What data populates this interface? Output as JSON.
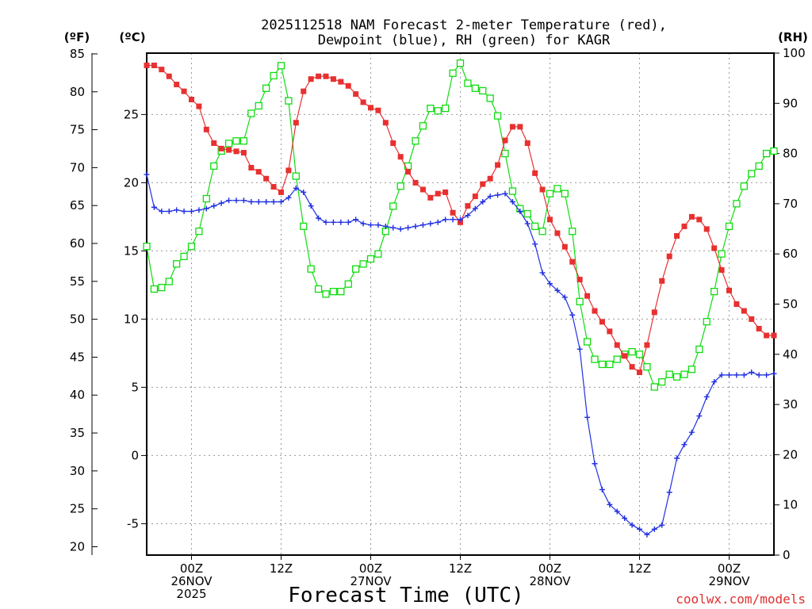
{
  "chart_data": {
    "type": "line",
    "title_lines": [
      "2025112518 NAM Forecast 2-meter Temperature (red),",
      "Dewpoint (blue), RH (green) for KAGR"
    ],
    "xlabel": "Forecast Time (UTC)",
    "credit": "coolwx.com/models",
    "unit_labels": {
      "fahrenheit": "(ºF)",
      "celsius": "(ºC)",
      "rh": "(RH)"
    },
    "x_hours_range": [
      0,
      84
    ],
    "x_ticks": [
      {
        "hour": 6,
        "lines": [
          "00Z",
          "26NOV",
          "2025"
        ]
      },
      {
        "hour": 18,
        "lines": [
          "12Z"
        ]
      },
      {
        "hour": 30,
        "lines": [
          "00Z",
          "27NOV"
        ]
      },
      {
        "hour": 42,
        "lines": [
          "12Z"
        ]
      },
      {
        "hour": 54,
        "lines": [
          "00Z",
          "28NOV"
        ]
      },
      {
        "hour": 66,
        "lines": [
          "12Z"
        ]
      },
      {
        "hour": 78,
        "lines": [
          "00Z",
          "29NOV"
        ]
      }
    ],
    "celsius_axis": {
      "range": [
        -7.3,
        29.5
      ],
      "ticks": [
        -5,
        0,
        5,
        10,
        15,
        20,
        25
      ]
    },
    "fahrenheit_axis": {
      "range": [
        18.9,
        85.1
      ],
      "ticks": [
        20,
        25,
        30,
        35,
        40,
        45,
        50,
        55,
        60,
        65,
        70,
        75,
        80,
        85
      ]
    },
    "rh_axis": {
      "range": [
        0,
        100
      ],
      "ticks": [
        0,
        10,
        20,
        30,
        40,
        50,
        60,
        70,
        80,
        90,
        100
      ]
    },
    "series": [
      {
        "name": "2-meter Temperature",
        "unit": "C",
        "color": "#e83030",
        "marker": "filled-square",
        "points": [
          [
            0,
            28.6
          ],
          [
            1,
            28.6
          ],
          [
            2,
            28.3
          ],
          [
            3,
            27.8
          ],
          [
            4,
            27.2
          ],
          [
            5,
            26.7
          ],
          [
            6,
            26.1
          ],
          [
            7,
            25.6
          ],
          [
            8,
            23.9
          ],
          [
            9,
            22.9
          ],
          [
            10,
            22.5
          ],
          [
            11,
            22.4
          ],
          [
            12,
            22.3
          ],
          [
            13,
            22.2
          ],
          [
            14,
            21.1
          ],
          [
            15,
            20.8
          ],
          [
            16,
            20.3
          ],
          [
            17,
            19.7
          ],
          [
            18,
            19.3
          ],
          [
            19,
            20.9
          ],
          [
            20,
            24.4
          ],
          [
            21,
            26.7
          ],
          [
            22,
            27.6
          ],
          [
            23,
            27.8
          ],
          [
            24,
            27.8
          ],
          [
            25,
            27.6
          ],
          [
            26,
            27.4
          ],
          [
            27,
            27.1
          ],
          [
            28,
            26.5
          ],
          [
            29,
            25.9
          ],
          [
            30,
            25.5
          ],
          [
            31,
            25.3
          ],
          [
            32,
            24.4
          ],
          [
            33,
            22.9
          ],
          [
            34,
            21.9
          ],
          [
            35,
            20.8
          ],
          [
            36,
            20.0
          ],
          [
            37,
            19.5
          ],
          [
            38,
            18.9
          ],
          [
            39,
            19.2
          ],
          [
            40,
            19.3
          ],
          [
            41,
            17.8
          ],
          [
            42,
            17.1
          ],
          [
            43,
            18.3
          ],
          [
            44,
            19.0
          ],
          [
            45,
            19.9
          ],
          [
            46,
            20.3
          ],
          [
            47,
            21.3
          ],
          [
            48,
            23.1
          ],
          [
            49,
            24.1
          ],
          [
            50,
            24.1
          ],
          [
            51,
            22.9
          ],
          [
            52,
            20.7
          ],
          [
            53,
            19.5
          ],
          [
            54,
            17.3
          ],
          [
            55,
            16.3
          ],
          [
            56,
            15.3
          ],
          [
            57,
            14.2
          ],
          [
            58,
            12.9
          ],
          [
            59,
            11.7
          ],
          [
            60,
            10.6
          ],
          [
            61,
            9.8
          ],
          [
            62,
            9.1
          ],
          [
            63,
            8.1
          ],
          [
            64,
            7.3
          ],
          [
            65,
            6.5
          ],
          [
            66,
            6.1
          ],
          [
            67,
            8.1
          ],
          [
            68,
            10.5
          ],
          [
            69,
            12.8
          ],
          [
            70,
            14.6
          ],
          [
            71,
            16.1
          ],
          [
            72,
            16.8
          ],
          [
            73,
            17.5
          ],
          [
            74,
            17.3
          ],
          [
            75,
            16.6
          ],
          [
            76,
            15.2
          ],
          [
            77,
            13.6
          ],
          [
            78,
            12.1
          ],
          [
            79,
            11.1
          ],
          [
            80,
            10.6
          ],
          [
            81,
            10.0
          ],
          [
            82,
            9.3
          ],
          [
            83,
            8.8
          ],
          [
            84,
            8.8
          ]
        ]
      },
      {
        "name": "Dewpoint",
        "unit": "C",
        "color": "#2030e0",
        "marker": "plus",
        "points": [
          [
            0,
            20.6
          ],
          [
            1,
            18.2
          ],
          [
            2,
            17.9
          ],
          [
            3,
            17.9
          ],
          [
            4,
            18.0
          ],
          [
            5,
            17.9
          ],
          [
            6,
            17.9
          ],
          [
            7,
            18.0
          ],
          [
            8,
            18.1
          ],
          [
            9,
            18.3
          ],
          [
            10,
            18.5
          ],
          [
            11,
            18.7
          ],
          [
            12,
            18.7
          ],
          [
            13,
            18.7
          ],
          [
            14,
            18.6
          ],
          [
            15,
            18.6
          ],
          [
            16,
            18.6
          ],
          [
            17,
            18.6
          ],
          [
            18,
            18.6
          ],
          [
            19,
            18.9
          ],
          [
            20,
            19.6
          ],
          [
            21,
            19.3
          ],
          [
            22,
            18.3
          ],
          [
            23,
            17.4
          ],
          [
            24,
            17.1
          ],
          [
            25,
            17.1
          ],
          [
            26,
            17.1
          ],
          [
            27,
            17.1
          ],
          [
            28,
            17.3
          ],
          [
            29,
            17.0
          ],
          [
            30,
            16.9
          ],
          [
            31,
            16.9
          ],
          [
            32,
            16.8
          ],
          [
            33,
            16.7
          ],
          [
            34,
            16.6
          ],
          [
            35,
            16.7
          ],
          [
            36,
            16.8
          ],
          [
            37,
            16.9
          ],
          [
            38,
            17.0
          ],
          [
            39,
            17.1
          ],
          [
            40,
            17.3
          ],
          [
            41,
            17.3
          ],
          [
            42,
            17.3
          ],
          [
            43,
            17.6
          ],
          [
            44,
            18.1
          ],
          [
            45,
            18.6
          ],
          [
            46,
            19.0
          ],
          [
            47,
            19.1
          ],
          [
            48,
            19.2
          ],
          [
            49,
            18.6
          ],
          [
            50,
            17.9
          ],
          [
            51,
            17.0
          ],
          [
            52,
            15.5
          ],
          [
            53,
            13.4
          ],
          [
            54,
            12.6
          ],
          [
            55,
            12.1
          ],
          [
            56,
            11.6
          ],
          [
            57,
            10.3
          ],
          [
            58,
            7.8
          ],
          [
            59,
            2.8
          ],
          [
            60,
            -0.6
          ],
          [
            61,
            -2.5
          ],
          [
            62,
            -3.6
          ],
          [
            63,
            -4.1
          ],
          [
            64,
            -4.6
          ],
          [
            65,
            -5.1
          ],
          [
            66,
            -5.4
          ],
          [
            67,
            -5.8
          ],
          [
            68,
            -5.4
          ],
          [
            69,
            -5.1
          ],
          [
            70,
            -2.7
          ],
          [
            71,
            -0.2
          ],
          [
            72,
            0.8
          ],
          [
            73,
            1.7
          ],
          [
            74,
            2.9
          ],
          [
            75,
            4.3
          ],
          [
            76,
            5.4
          ],
          [
            77,
            5.9
          ],
          [
            78,
            5.9
          ],
          [
            79,
            5.9
          ],
          [
            80,
            5.9
          ],
          [
            81,
            6.1
          ],
          [
            82,
            5.9
          ],
          [
            83,
            5.9
          ],
          [
            84,
            6.0
          ]
        ]
      },
      {
        "name": "RH",
        "unit": "%",
        "color": "#10dc10",
        "marker": "open-square",
        "points": [
          [
            0,
            61.5
          ],
          [
            1,
            53.0
          ],
          [
            2,
            53.3
          ],
          [
            3,
            54.5
          ],
          [
            4,
            58.0
          ],
          [
            5,
            59.5
          ],
          [
            6,
            61.5
          ],
          [
            7,
            64.5
          ],
          [
            8,
            71.0
          ],
          [
            9,
            77.5
          ],
          [
            10,
            80.5
          ],
          [
            11,
            82.0
          ],
          [
            12,
            82.5
          ],
          [
            13,
            82.5
          ],
          [
            14,
            88.0
          ],
          [
            15,
            89.5
          ],
          [
            16,
            93.0
          ],
          [
            17,
            95.5
          ],
          [
            18,
            97.5
          ],
          [
            19,
            90.5
          ],
          [
            20,
            75.5
          ],
          [
            21,
            65.5
          ],
          [
            22,
            57.0
          ],
          [
            23,
            53.0
          ],
          [
            24,
            52.0
          ],
          [
            25,
            52.5
          ],
          [
            26,
            52.5
          ],
          [
            27,
            54.0
          ],
          [
            28,
            57.0
          ],
          [
            29,
            58.0
          ],
          [
            30,
            59.0
          ],
          [
            31,
            60.0
          ],
          [
            32,
            64.5
          ],
          [
            33,
            69.5
          ],
          [
            34,
            73.5
          ],
          [
            35,
            77.5
          ],
          [
            36,
            82.5
          ],
          [
            37,
            85.5
          ],
          [
            38,
            89.0
          ],
          [
            39,
            88.5
          ],
          [
            40,
            89.0
          ],
          [
            41,
            96.0
          ],
          [
            42,
            98.0
          ],
          [
            43,
            94.0
          ],
          [
            44,
            93.0
          ],
          [
            45,
            92.5
          ],
          [
            46,
            91.0
          ],
          [
            47,
            87.5
          ],
          [
            48,
            80.0
          ],
          [
            49,
            72.5
          ],
          [
            50,
            69.0
          ],
          [
            51,
            68.0
          ],
          [
            52,
            65.5
          ],
          [
            53,
            64.5
          ],
          [
            54,
            72.0
          ],
          [
            55,
            73.0
          ],
          [
            56,
            72.0
          ],
          [
            57,
            64.5
          ],
          [
            58,
            50.5
          ],
          [
            59,
            42.5
          ],
          [
            60,
            39.0
          ],
          [
            61,
            38.0
          ],
          [
            62,
            38.0
          ],
          [
            63,
            39.0
          ],
          [
            64,
            40.0
          ],
          [
            65,
            40.5
          ],
          [
            66,
            40.0
          ],
          [
            67,
            37.5
          ],
          [
            68,
            33.5
          ],
          [
            69,
            34.5
          ],
          [
            70,
            36.0
          ],
          [
            71,
            35.5
          ],
          [
            72,
            36.0
          ],
          [
            73,
            37.0
          ],
          [
            74,
            41.0
          ],
          [
            75,
            46.5
          ],
          [
            76,
            52.5
          ],
          [
            77,
            60.0
          ],
          [
            78,
            65.5
          ],
          [
            79,
            70.0
          ],
          [
            80,
            73.5
          ],
          [
            81,
            76.0
          ],
          [
            82,
            77.5
          ],
          [
            83,
            80.0
          ],
          [
            84,
            80.5
          ]
        ]
      }
    ]
  }
}
